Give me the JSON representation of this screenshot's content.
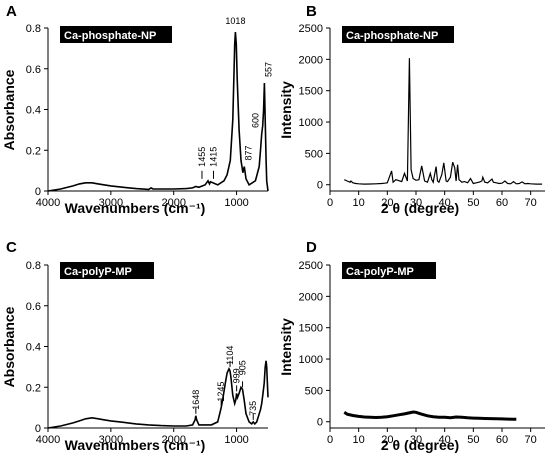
{
  "chart_data": [
    {
      "panel": "A",
      "type": "line",
      "badge": "Ca-phosphate-NP",
      "xlabel": "Wavenumbers (cm⁻¹)",
      "ylabel": "Absorbance",
      "xlim": [
        4000,
        500
      ],
      "ylim": [
        0,
        0.8
      ],
      "x_reversed": true,
      "xticks": [
        4000,
        3000,
        2000,
        1000
      ],
      "yticks": [
        0,
        0.2,
        0.4,
        0.6,
        0.8
      ],
      "x": [
        4000,
        3800,
        3600,
        3500,
        3400,
        3300,
        3200,
        3000,
        2800,
        2600,
        2400,
        2360,
        2330,
        2200,
        2000,
        1800,
        1700,
        1650,
        1600,
        1500,
        1455,
        1430,
        1415,
        1300,
        1200,
        1150,
        1100,
        1060,
        1040,
        1030,
        1018,
        1005,
        990,
        960,
        930,
        900,
        877,
        850,
        800,
        700,
        640,
        620,
        600,
        585,
        570,
        557,
        545,
        530,
        520,
        500
      ],
      "y": [
        0.0,
        0.01,
        0.025,
        0.035,
        0.04,
        0.04,
        0.035,
        0.025,
        0.018,
        0.012,
        0.008,
        0.015,
        0.01,
        0.01,
        0.01,
        0.012,
        0.015,
        0.022,
        0.018,
        0.03,
        0.05,
        0.035,
        0.045,
        0.03,
        0.05,
        0.08,
        0.15,
        0.35,
        0.6,
        0.72,
        0.78,
        0.72,
        0.55,
        0.3,
        0.15,
        0.09,
        0.12,
        0.06,
        0.03,
        0.05,
        0.12,
        0.2,
        0.28,
        0.32,
        0.4,
        0.53,
        0.35,
        0.15,
        0.05,
        0.0
      ],
      "annotations": [
        {
          "text": "1018",
          "x": 1018,
          "y": 0.78
        },
        {
          "text": "1455",
          "x": 1455,
          "y": 0.05
        },
        {
          "text": "1415",
          "x": 1415,
          "y": 0.05
        },
        {
          "text": "877",
          "x": 877,
          "y": 0.12
        },
        {
          "text": "600",
          "x": 600,
          "y": 0.28
        },
        {
          "text": "557",
          "x": 557,
          "y": 0.53
        }
      ]
    },
    {
      "panel": "B",
      "type": "line",
      "badge": "Ca-phosphate-NP",
      "xlabel": "2 θ (degree)",
      "ylabel": "Intensity",
      "xlim": [
        0,
        75
      ],
      "ylim": [
        -100,
        2500
      ],
      "xticks": [
        0,
        10,
        20,
        30,
        40,
        50,
        60,
        70
      ],
      "yticks": [
        0,
        500,
        1000,
        1500,
        2000,
        2500
      ],
      "x": [
        5,
        6,
        7,
        7.3,
        8,
        9,
        10,
        12,
        14,
        16,
        18,
        19,
        20,
        21.5,
        22,
        23,
        25,
        26,
        27,
        27.7,
        28.3,
        29,
        30,
        31,
        32,
        33,
        34,
        35,
        35.5,
        36,
        37,
        37.5,
        38,
        39,
        39.7,
        40.5,
        41,
        42,
        42.8,
        43.5,
        44,
        44.5,
        45,
        46,
        47,
        48,
        49,
        50,
        51,
        52,
        53,
        53.3,
        54,
        55,
        56,
        56.5,
        57,
        58,
        59,
        60,
        61,
        62,
        63,
        64,
        65,
        66,
        67,
        68,
        69,
        70,
        72,
        74
      ],
      "y": [
        80,
        60,
        40,
        60,
        30,
        20,
        15,
        10,
        12,
        15,
        20,
        25,
        30,
        220,
        40,
        80,
        50,
        180,
        60,
        2020,
        240,
        100,
        70,
        80,
        300,
        60,
        40,
        180,
        80,
        40,
        290,
        60,
        40,
        160,
        350,
        60,
        50,
        120,
        360,
        270,
        60,
        320,
        80,
        40,
        50,
        30,
        100,
        20,
        30,
        40,
        60,
        120,
        40,
        30,
        70,
        90,
        40,
        30,
        20,
        25,
        60,
        20,
        15,
        50,
        15,
        20,
        45,
        15,
        20,
        15,
        10,
        10
      ]
    },
    {
      "panel": "C",
      "type": "line",
      "badge": "Ca-polyP-MP",
      "xlabel": "Wavenumbers (cm⁻¹)",
      "ylabel": "Absorbance",
      "xlim": [
        4000,
        500
      ],
      "ylim": [
        0,
        0.8
      ],
      "x_reversed": true,
      "xticks": [
        4000,
        3000,
        2000,
        1000
      ],
      "yticks": [
        0,
        0.2,
        0.4,
        0.6,
        0.8
      ],
      "x": [
        4000,
        3800,
        3600,
        3500,
        3400,
        3300,
        3200,
        3100,
        3000,
        2800,
        2600,
        2400,
        2200,
        2000,
        1800,
        1700,
        1660,
        1648,
        1635,
        1600,
        1400,
        1300,
        1260,
        1245,
        1220,
        1180,
        1150,
        1120,
        1104,
        1090,
        1060,
        1030,
        1010,
        999,
        985,
        960,
        930,
        905,
        880,
        850,
        800,
        760,
        735,
        710,
        680,
        650,
        620,
        600,
        580,
        560,
        545,
        530,
        520,
        500
      ],
      "y": [
        0.0,
        0.01,
        0.025,
        0.035,
        0.045,
        0.05,
        0.045,
        0.04,
        0.035,
        0.028,
        0.02,
        0.015,
        0.012,
        0.01,
        0.01,
        0.015,
        0.04,
        0.06,
        0.04,
        0.015,
        0.015,
        0.03,
        0.08,
        0.1,
        0.14,
        0.22,
        0.27,
        0.29,
        0.28,
        0.25,
        0.16,
        0.12,
        0.14,
        0.17,
        0.15,
        0.17,
        0.2,
        0.19,
        0.14,
        0.07,
        0.03,
        0.02,
        0.03,
        0.02,
        0.03,
        0.06,
        0.09,
        0.12,
        0.17,
        0.22,
        0.3,
        0.33,
        0.3,
        0.15
      ]
    },
    {
      "panel": "D",
      "type": "line",
      "badge": "Ca-polyP-MP",
      "xlabel": "2 θ (degree)",
      "ylabel": "Intensity",
      "xlim": [
        0,
        75
      ],
      "ylim": [
        -100,
        2500
      ],
      "xticks": [
        0,
        10,
        20,
        30,
        40,
        50,
        60,
        70
      ],
      "yticks": [
        0,
        500,
        1000,
        1500,
        2000,
        2500
      ],
      "x": [
        5,
        6,
        8,
        10,
        12,
        14,
        16,
        18,
        20,
        22,
        24,
        26,
        28,
        29,
        30,
        31,
        32,
        34,
        36,
        38,
        40,
        42,
        44,
        46,
        48,
        50,
        52,
        54,
        56,
        58,
        60,
        62,
        64,
        65
      ],
      "y": [
        150,
        120,
        100,
        85,
        75,
        70,
        68,
        70,
        80,
        95,
        110,
        125,
        145,
        155,
        150,
        135,
        120,
        95,
        80,
        70,
        72,
        65,
        75,
        70,
        62,
        58,
        55,
        52,
        50,
        48,
        45,
        42,
        40,
        38
      ]
    }
  ]
}
